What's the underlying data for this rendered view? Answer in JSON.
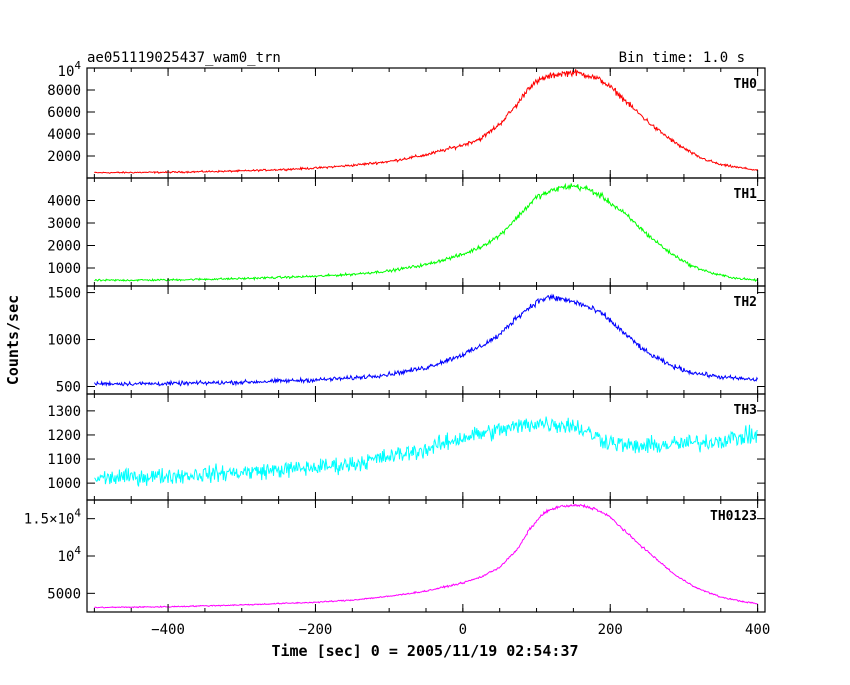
{
  "header": {
    "left": "ae051119025437_wam0_trn",
    "right": "Bin time: 1.0 s"
  },
  "chart_data": {
    "type": "line",
    "xlabel": "Time [sec] 0 = 2005/11/19 02:54:37",
    "ylabel": "Counts/sec",
    "xlim": [
      -510,
      410
    ],
    "xticks": [
      {
        "v": -400,
        "label": "−400"
      },
      {
        "v": -200,
        "label": "−200"
      },
      {
        "v": 0,
        "label": "0"
      },
      {
        "v": 200,
        "label": "200"
      },
      {
        "v": 400,
        "label": "400"
      }
    ],
    "series": [
      {
        "name": "TH0",
        "color": "#ff0000",
        "ylim": [
          0,
          10000
        ],
        "yticks": [
          {
            "v": 2000,
            "label": "2000"
          },
          {
            "v": 4000,
            "label": "4000"
          },
          {
            "v": 6000,
            "label": "6000"
          },
          {
            "v": 8000,
            "label": "8000"
          }
        ],
        "ytop_label": "10",
        "ytop_exp": "4",
        "points": [
          [
            -500,
            480
          ],
          [
            -400,
            520
          ],
          [
            -300,
            640
          ],
          [
            -250,
            760
          ],
          [
            -200,
            900
          ],
          [
            -150,
            1150
          ],
          [
            -100,
            1500
          ],
          [
            -50,
            2100
          ],
          [
            0,
            3000
          ],
          [
            25,
            3600
          ],
          [
            50,
            4900
          ],
          [
            75,
            6800
          ],
          [
            90,
            8300
          ],
          [
            110,
            9100
          ],
          [
            130,
            9450
          ],
          [
            150,
            9600
          ],
          [
            170,
            9350
          ],
          [
            190,
            8800
          ],
          [
            210,
            7700
          ],
          [
            230,
            6400
          ],
          [
            260,
            4600
          ],
          [
            290,
            3100
          ],
          [
            320,
            1900
          ],
          [
            350,
            1200
          ],
          [
            380,
            900
          ],
          [
            400,
            700
          ]
        ],
        "noise": 110
      },
      {
        "name": "TH1",
        "color": "#00ff00",
        "ylim": [
          200,
          5000
        ],
        "yticks": [
          {
            "v": 1000,
            "label": "1000"
          },
          {
            "v": 2000,
            "label": "2000"
          },
          {
            "v": 3000,
            "label": "3000"
          },
          {
            "v": 4000,
            "label": "4000"
          }
        ],
        "points": [
          [
            -500,
            450
          ],
          [
            -400,
            470
          ],
          [
            -300,
            530
          ],
          [
            -200,
            630
          ],
          [
            -150,
            720
          ],
          [
            -100,
            870
          ],
          [
            -50,
            1150
          ],
          [
            0,
            1600
          ],
          [
            25,
            1950
          ],
          [
            50,
            2450
          ],
          [
            75,
            3300
          ],
          [
            100,
            4150
          ],
          [
            130,
            4550
          ],
          [
            150,
            4650
          ],
          [
            170,
            4500
          ],
          [
            190,
            4150
          ],
          [
            220,
            3400
          ],
          [
            250,
            2500
          ],
          [
            280,
            1700
          ],
          [
            310,
            1100
          ],
          [
            340,
            750
          ],
          [
            370,
            550
          ],
          [
            400,
            450
          ]
        ],
        "noise": 70
      },
      {
        "name": "TH2",
        "color": "#0000ff",
        "ylim": [
          420,
          1570
        ],
        "yticks": [
          {
            "v": 500,
            "label": "500"
          },
          {
            "v": 1000,
            "label": "1000"
          },
          {
            "v": 1500,
            "label": "1500"
          }
        ],
        "points": [
          [
            -500,
            530
          ],
          [
            -400,
            530
          ],
          [
            -300,
            545
          ],
          [
            -200,
            570
          ],
          [
            -150,
            590
          ],
          [
            -100,
            630
          ],
          [
            -50,
            700
          ],
          [
            0,
            840
          ],
          [
            25,
            930
          ],
          [
            50,
            1050
          ],
          [
            75,
            1250
          ],
          [
            100,
            1400
          ],
          [
            115,
            1450
          ],
          [
            135,
            1430
          ],
          [
            160,
            1380
          ],
          [
            190,
            1270
          ],
          [
            220,
            1060
          ],
          [
            250,
            860
          ],
          [
            280,
            730
          ],
          [
            310,
            650
          ],
          [
            350,
            600
          ],
          [
            400,
            570
          ]
        ],
        "noise": 35
      },
      {
        "name": "TH3",
        "color": "#00ffff",
        "ylim": [
          930,
          1370
        ],
        "yticks": [
          {
            "v": 1000,
            "label": "1000"
          },
          {
            "v": 1100,
            "label": "1100"
          },
          {
            "v": 1200,
            "label": "1200"
          },
          {
            "v": 1300,
            "label": "1300"
          }
        ],
        "points": [
          [
            -500,
            1020
          ],
          [
            -400,
            1030
          ],
          [
            -300,
            1045
          ],
          [
            -200,
            1065
          ],
          [
            -150,
            1080
          ],
          [
            -100,
            1110
          ],
          [
            -50,
            1140
          ],
          [
            0,
            1190
          ],
          [
            50,
            1220
          ],
          [
            100,
            1250
          ],
          [
            150,
            1240
          ],
          [
            190,
            1180
          ],
          [
            230,
            1150
          ],
          [
            280,
            1160
          ],
          [
            330,
            1170
          ],
          [
            400,
            1200
          ]
        ],
        "noise": 55
      },
      {
        "name": "TH0123",
        "color": "#ff00ff",
        "ylim": [
          2500,
          17500
        ],
        "yticks": [
          {
            "v": 5000,
            "label": "5000"
          },
          {
            "v": 10000,
            "label": "10",
            "exp": "4"
          },
          {
            "v": 15000,
            "label": "1.5×10",
            "exp": "4"
          }
        ],
        "points": [
          [
            -500,
            3100
          ],
          [
            -400,
            3200
          ],
          [
            -300,
            3450
          ],
          [
            -200,
            3800
          ],
          [
            -150,
            4100
          ],
          [
            -100,
            4600
          ],
          [
            -50,
            5300
          ],
          [
            0,
            6400
          ],
          [
            25,
            7200
          ],
          [
            50,
            8500
          ],
          [
            75,
            11000
          ],
          [
            90,
            13500
          ],
          [
            110,
            15800
          ],
          [
            130,
            16600
          ],
          [
            160,
            16800
          ],
          [
            180,
            16300
          ],
          [
            200,
            15200
          ],
          [
            230,
            12400
          ],
          [
            260,
            9800
          ],
          [
            290,
            7300
          ],
          [
            320,
            5600
          ],
          [
            350,
            4500
          ],
          [
            380,
            3900
          ],
          [
            400,
            3600
          ]
        ],
        "noise": 130
      }
    ]
  }
}
